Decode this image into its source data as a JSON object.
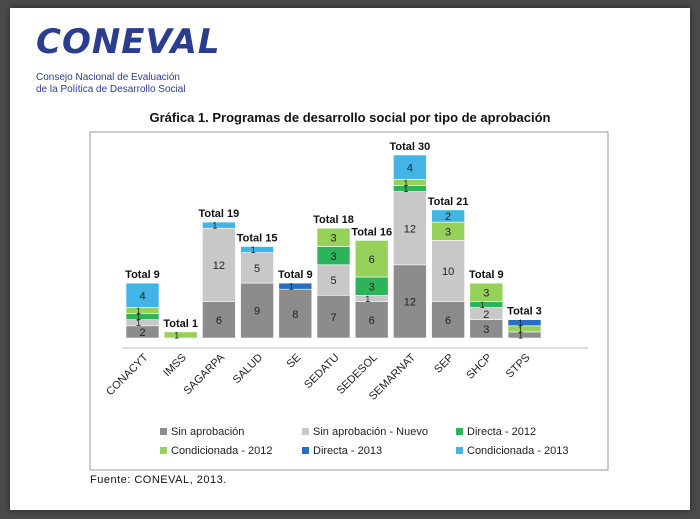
{
  "logo": {
    "word": "CONEVAL",
    "line1": "Consejo Nacional de Evaluación",
    "line2": "de la Política de Desarrollo Social"
  },
  "source": "Fuente: CONEVAL, 2013.",
  "chart_data": {
    "type": "bar",
    "stacked": true,
    "title": "Gráfica 1. Programas de desarrollo social por tipo de aprobación",
    "categories": [
      "CONACYT",
      "IMSS",
      "SAGARPA",
      "SALUD",
      "SE",
      "SEDATU",
      "SEDESOL",
      "SEMARNAT",
      "SEP",
      "SHCP",
      "STPS"
    ],
    "totals": [
      "Total 9",
      "Total 1",
      "Total 19",
      "Total 15",
      "Total 9",
      "Total 18",
      "Total 16",
      "Total 30",
      "Total 21",
      "Total 9",
      "Total 3"
    ],
    "ylim": [
      0,
      32
    ],
    "legend_position": "bottom",
    "grid": false,
    "series": [
      {
        "name": "Sin aprobación",
        "color": "#8c8c8c",
        "values": [
          2,
          0,
          6,
          9,
          8,
          7,
          6,
          12,
          6,
          3,
          1
        ]
      },
      {
        "name": "Sin aprobación - Nuevo",
        "color": "#c8c8c8",
        "values": [
          1,
          0,
          12,
          5,
          0,
          5,
          1,
          12,
          10,
          2,
          0
        ]
      },
      {
        "name": "Directa - 2012",
        "color": "#2db45a",
        "values": [
          1,
          0,
          0,
          0,
          0,
          3,
          3,
          1,
          0,
          1,
          0
        ]
      },
      {
        "name": "Condicionada - 2012",
        "color": "#96d25a",
        "values": [
          1,
          1,
          0,
          0,
          0,
          3,
          6,
          1,
          3,
          3,
          1
        ]
      },
      {
        "name": "Directa - 2013",
        "color": "#2a6fbf",
        "values": [
          0,
          0,
          0,
          0,
          1,
          0,
          0,
          0,
          0,
          0,
          1
        ]
      },
      {
        "name": "Condicionada - 2013",
        "color": "#42b4e6",
        "values": [
          4,
          0,
          1,
          1,
          0,
          0,
          0,
          4,
          2,
          0,
          0
        ]
      }
    ]
  }
}
